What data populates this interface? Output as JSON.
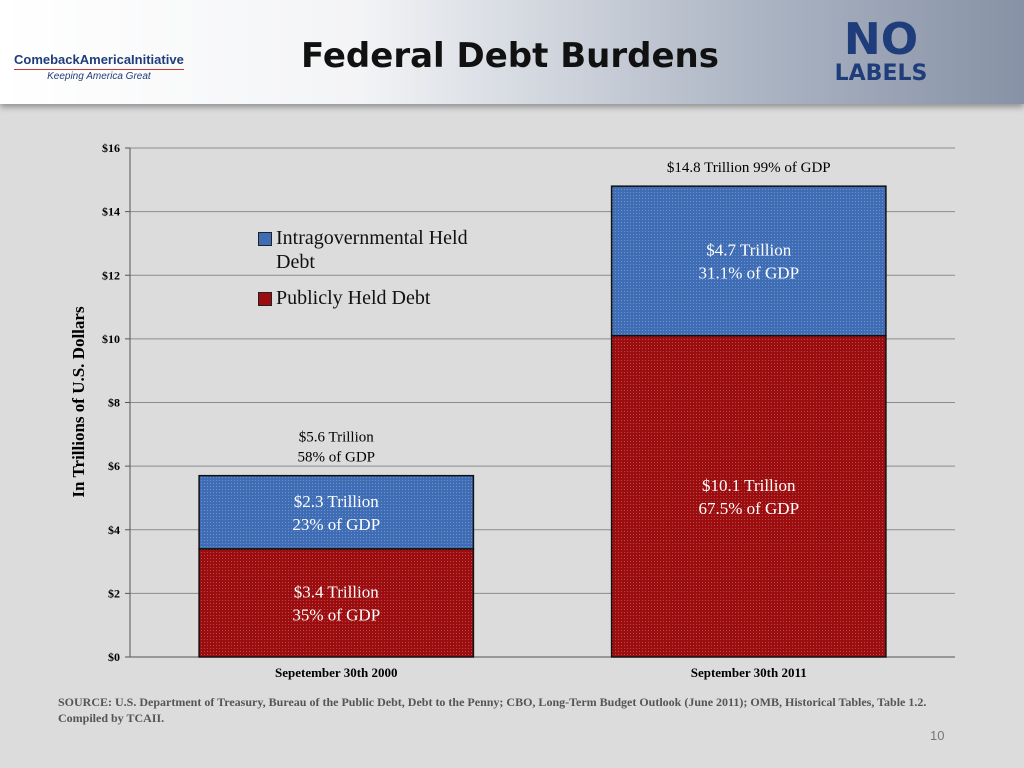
{
  "header": {
    "logo_left": {
      "name": "ComebackAmericaInitiative",
      "tagline": "Keeping America Great"
    },
    "logo_right": {
      "line1": "NO",
      "line2": "LABELS"
    }
  },
  "chart_data": {
    "type": "stacked-bar",
    "title": "Federal Debt Burdens",
    "categories": [
      "Sepetember 30th 2000",
      "September 30th 2011"
    ],
    "series": [
      {
        "name": "Publicly Held Debt",
        "color": "#9b0d0f",
        "values": [
          3.4,
          10.1
        ],
        "value_labels": [
          [
            "$3.4 Trillion",
            "35% of GDP"
          ],
          [
            "$10.1 Trillion",
            "67.5% of GDP"
          ]
        ]
      },
      {
        "name": "Intragovernmental Held Debt",
        "color": "#3f6db5",
        "values": [
          2.3,
          4.7
        ],
        "value_labels": [
          [
            "$2.3 Trillion",
            "23% of GDP"
          ],
          [
            "$4.7 Trillion",
            "31.1% of GDP"
          ]
        ]
      }
    ],
    "total_labels": [
      [
        "$5.6 Trillion",
        "58% of GDP"
      ],
      [
        "$14.8 Trillion  99% of GDP"
      ]
    ],
    "y_label": "In Trillions of U.S. Dollars",
    "ylim": [
      0,
      16
    ],
    "yticks": [
      {
        "value": 0,
        "label": "$0"
      },
      {
        "value": 2,
        "label": "$2"
      },
      {
        "value": 4,
        "label": "$4"
      },
      {
        "value": 6,
        "label": "$6"
      },
      {
        "value": 8,
        "label": "$8"
      },
      {
        "value": 10,
        "label": "$10"
      },
      {
        "value": 12,
        "label": "$12"
      },
      {
        "value": 14,
        "label": "$14"
      },
      {
        "value": 16,
        "label": "$16"
      }
    ],
    "grid": true,
    "legend": "upper-left"
  },
  "footer": {
    "source": "SOURCE: U.S. Department of Treasury, Bureau of the Public Debt, Debt to the Penny; CBO, Long-Term Budget Outlook (June 2011); OMB, Historical Tables, Table 1.2. Compiled by TCAII.",
    "page": "10"
  }
}
